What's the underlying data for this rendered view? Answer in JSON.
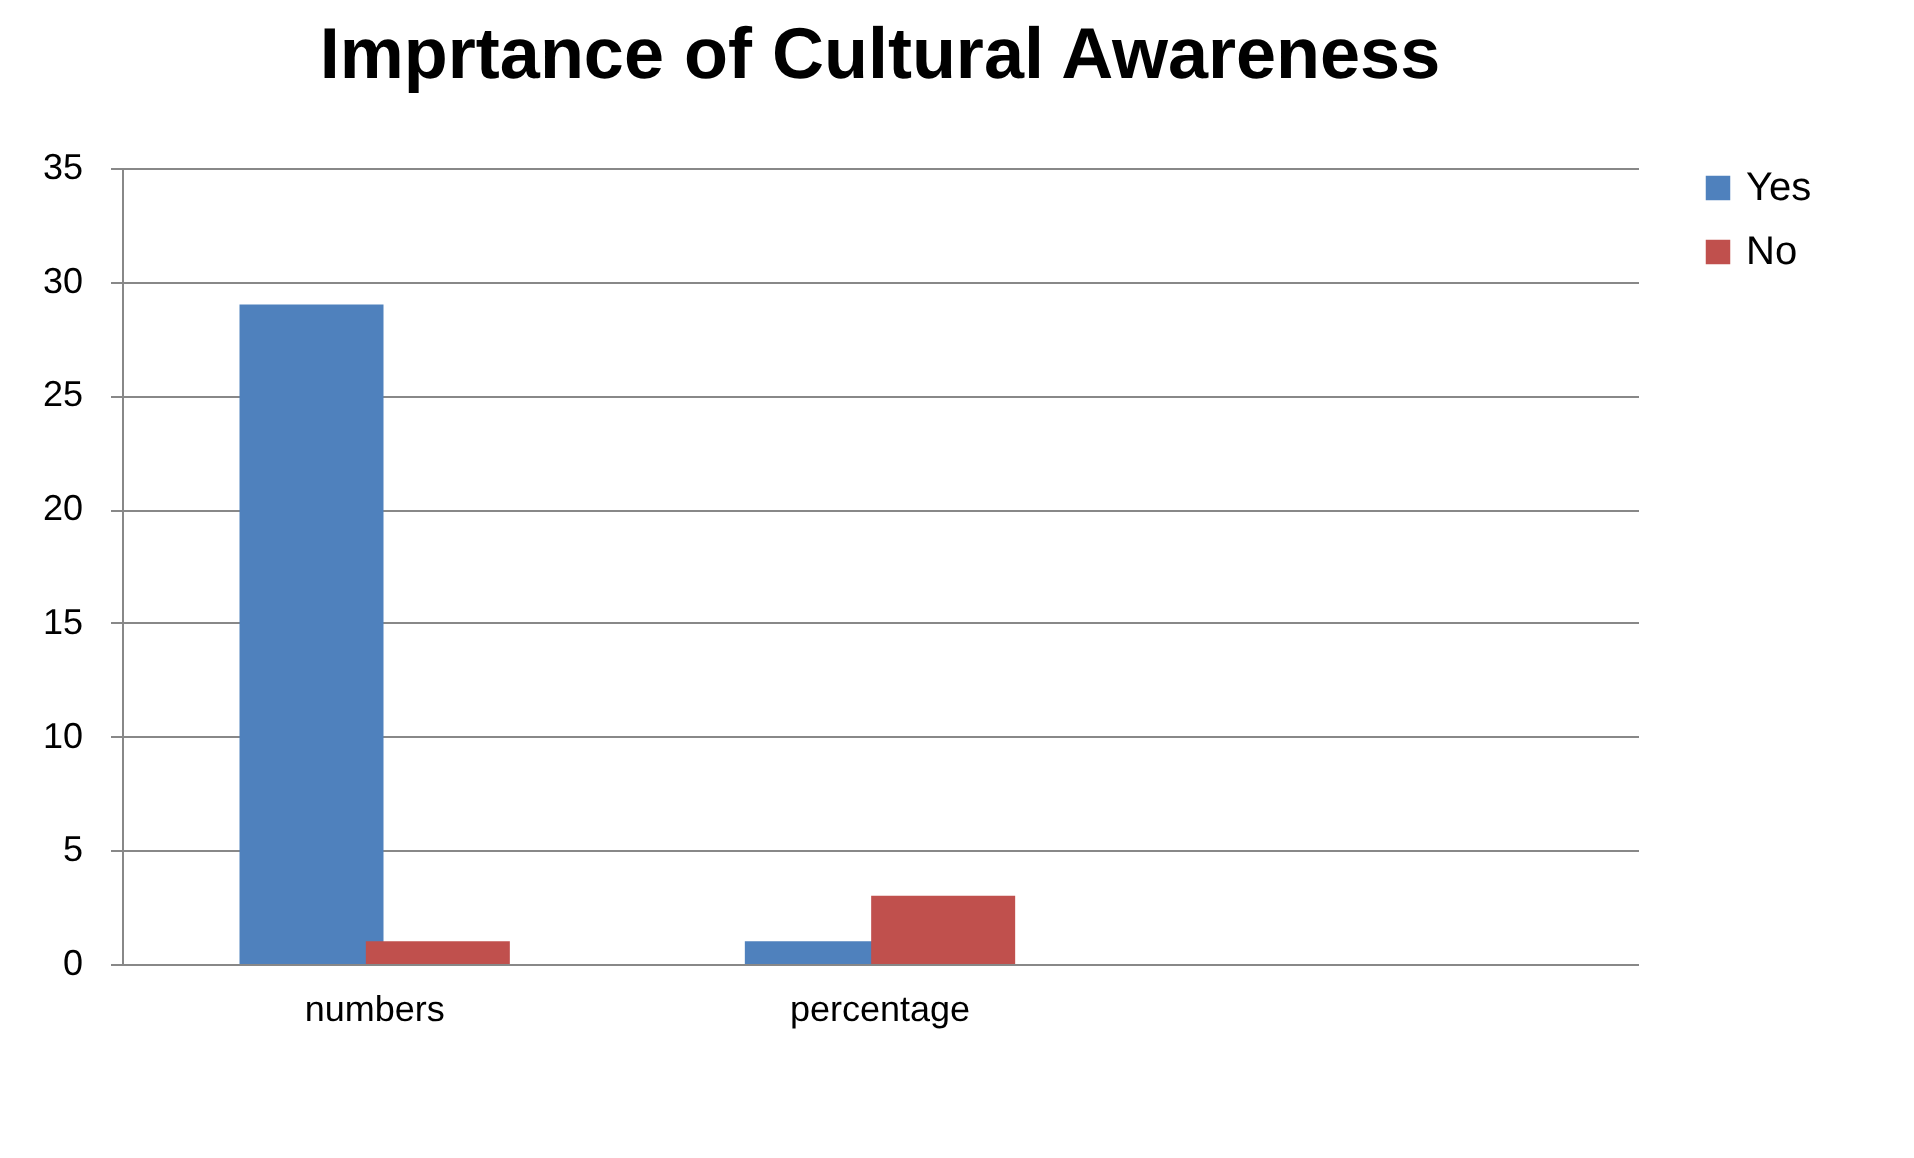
{
  "chart_data": {
    "type": "bar",
    "title": "Imprtance of Cultural Awareness",
    "categories": [
      "numbers",
      "percentage",
      null
    ],
    "series": [
      {
        "name": "Yes",
        "color": "#4f81bd",
        "values": [
          29,
          1,
          null
        ]
      },
      {
        "name": "No",
        "color": "#c0504d",
        "values": [
          1,
          3,
          null
        ]
      }
    ],
    "ylim": [
      0,
      35
    ],
    "yticks": [
      0,
      5,
      10,
      15,
      20,
      25,
      30,
      35
    ],
    "grid": "y",
    "legend": "right"
  }
}
